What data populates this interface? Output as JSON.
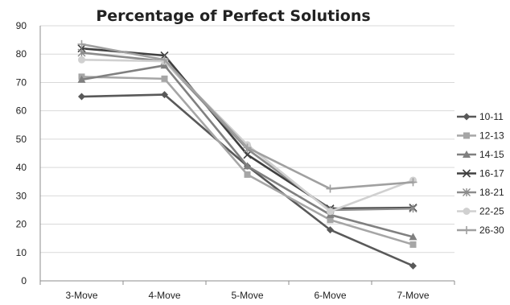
{
  "chart_data": {
    "type": "line",
    "title": "Percentage of Perfect Solutions",
    "xlabel": "",
    "ylabel": "",
    "categories": [
      "3-Move",
      "4-Move",
      "5-Move",
      "6-Move",
      "7-Move"
    ],
    "ylim": [
      0,
      90
    ],
    "yticks": [
      0,
      10,
      20,
      30,
      40,
      50,
      60,
      70,
      80,
      90
    ],
    "grid": true,
    "legend_position": "right",
    "series": [
      {
        "name": "10-11",
        "values": [
          65,
          65.7,
          40.5,
          18,
          5.3
        ],
        "color": "#595959",
        "marker": "diamond"
      },
      {
        "name": "12-13",
        "values": [
          72,
          71.3,
          37.5,
          21.5,
          12.8
        ],
        "color": "#a6a6a6",
        "marker": "square"
      },
      {
        "name": "14-15",
        "values": [
          71,
          76,
          40.5,
          23.3,
          15.5
        ],
        "color": "#808080",
        "marker": "triangle"
      },
      {
        "name": "16-17",
        "values": [
          82,
          79.5,
          44.5,
          25.5,
          25.8
        ],
        "color": "#404040",
        "marker": "x"
      },
      {
        "name": "18-21",
        "values": [
          80.5,
          77.5,
          46.5,
          25,
          25.5
        ],
        "color": "#8c8c8c",
        "marker": "asterisk"
      },
      {
        "name": "22-25",
        "values": [
          78,
          77.5,
          48,
          24.5,
          35.5
        ],
        "color": "#d0d0d0",
        "marker": "circle"
      },
      {
        "name": "26-30",
        "values": [
          83.5,
          78,
          47,
          32.5,
          34.8
        ],
        "color": "#a0a0a0",
        "marker": "plus"
      }
    ]
  }
}
